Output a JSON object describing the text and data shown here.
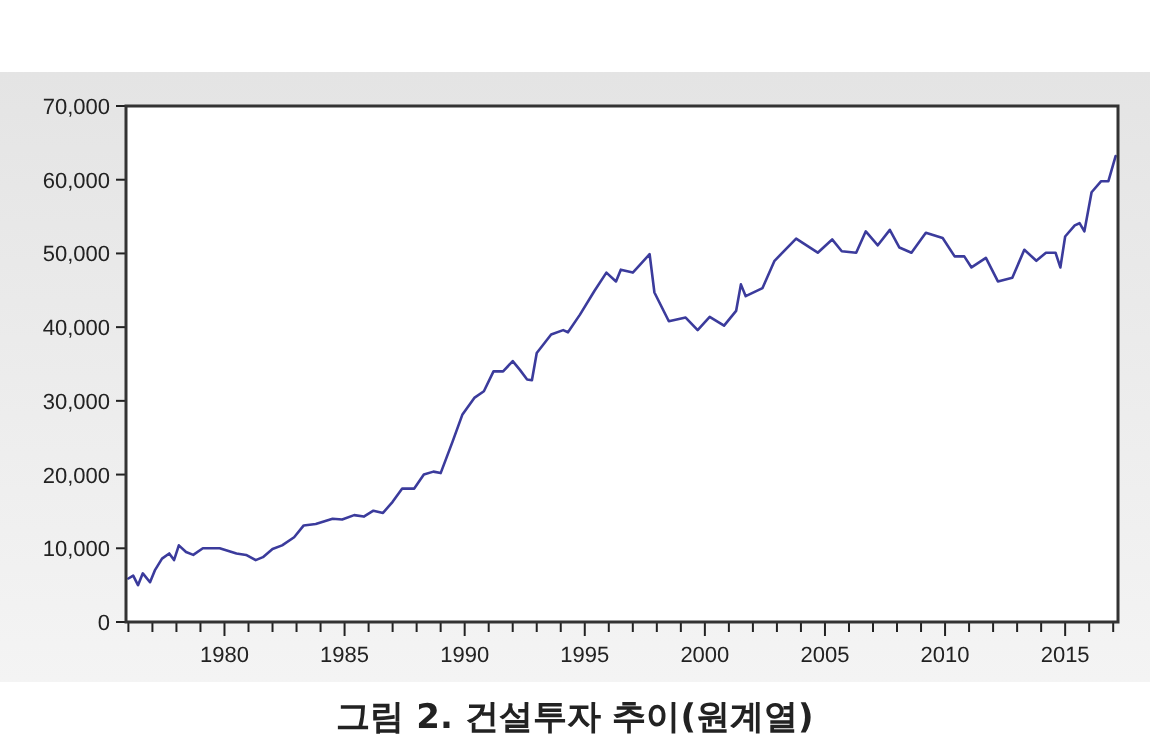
{
  "chart_data": {
    "type": "line",
    "title": "그림 2. 건설투자 추이(원계열)",
    "xlim": [
      1975.9,
      2017.2
    ],
    "ylim": [
      0,
      70000
    ],
    "xticks": [
      {
        "value": 1976,
        "label": null
      },
      {
        "value": 1977,
        "label": null
      },
      {
        "value": 1978,
        "label": null
      },
      {
        "value": 1979,
        "label": null
      },
      1980,
      {
        "value": 1981,
        "label": null
      },
      {
        "value": 1982,
        "label": null
      },
      {
        "value": 1983,
        "label": null
      },
      {
        "value": 1984,
        "label": null
      },
      1985,
      {
        "value": 1986,
        "label": null
      },
      {
        "value": 1987,
        "label": null
      },
      {
        "value": 1988,
        "label": null
      },
      {
        "value": 1989,
        "label": null
      },
      1990,
      {
        "value": 1991,
        "label": null
      },
      {
        "value": 1992,
        "label": null
      },
      {
        "value": 1993,
        "label": null
      },
      {
        "value": 1994,
        "label": null
      },
      1995,
      {
        "value": 1996,
        "label": null
      },
      {
        "value": 1997,
        "label": null
      },
      {
        "value": 1998,
        "label": null
      },
      {
        "value": 1999,
        "label": null
      },
      2000,
      {
        "value": 2001,
        "label": null
      },
      {
        "value": 2002,
        "label": null
      },
      {
        "value": 2003,
        "label": null
      },
      {
        "value": 2004,
        "label": null
      },
      2005,
      {
        "value": 2006,
        "label": null
      },
      {
        "value": 2007,
        "label": null
      },
      {
        "value": 2008,
        "label": null
      },
      {
        "value": 2009,
        "label": null
      },
      2010,
      {
        "value": 2011,
        "label": null
      },
      {
        "value": 2012,
        "label": null
      },
      {
        "value": 2013,
        "label": null
      },
      {
        "value": 2014,
        "label": null
      },
      2015,
      {
        "value": 2016,
        "label": null
      },
      {
        "value": 2017,
        "label": null
      }
    ],
    "yticks": [
      0,
      {
        "value": 10000,
        "label": "10,000"
      },
      {
        "value": 20000,
        "label": "20,000"
      },
      {
        "value": 30000,
        "label": "30,000"
      },
      {
        "value": 40000,
        "label": "40,000"
      },
      {
        "value": 50000,
        "label": "50,000"
      },
      {
        "value": 60000,
        "label": "60,000"
      },
      {
        "value": 70000,
        "label": "70,000"
      }
    ],
    "grid": false,
    "line_style": "solid",
    "series": [
      {
        "color": "#3b3b9c",
        "x": [
          1976.0,
          1976.2,
          1976.4,
          1976.6,
          1976.9,
          1977.1,
          1977.4,
          1977.7,
          1977.9,
          1978.1,
          1978.4,
          1978.7,
          1979.1,
          1979.8,
          1980.5,
          1980.9,
          1981.3,
          1981.6,
          1982.0,
          1982.4,
          1982.9,
          1983.3,
          1983.8,
          1984.5,
          1984.9,
          1985.4,
          1985.8,
          1986.2,
          1986.6,
          1987.0,
          1987.4,
          1987.9,
          1988.3,
          1988.7,
          1989.0,
          1989.5,
          1989.9,
          1990.4,
          1990.8,
          1991.2,
          1991.6,
          1992.0,
          1992.3,
          1992.6,
          1992.8,
          1993.0,
          1993.6,
          1994.1,
          1994.3,
          1994.8,
          1995.4,
          1995.9,
          1996.3,
          1996.5,
          1997.0,
          1997.2,
          1997.7,
          1997.9,
          1998.5,
          1999.2,
          1999.7,
          2000.2,
          2000.8,
          2001.3,
          2001.5,
          2001.7,
          2002.4,
          2002.9,
          2003.8,
          2004.7,
          2005.3,
          2005.7,
          2006.3,
          2006.7,
          2007.2,
          2007.7,
          2008.1,
          2008.6,
          2009.2,
          2009.9,
          2010.4,
          2010.8,
          2011.1,
          2011.7,
          2012.2,
          2012.8,
          2013.3,
          2013.8,
          2014.2,
          2014.6,
          2014.8,
          2015.0,
          2015.4,
          2015.6,
          2015.8,
          2016.1,
          2016.5,
          2016.8,
          2017.1
        ],
        "values": [
          5900,
          6300,
          5000,
          6600,
          5400,
          7000,
          8600,
          9300,
          8400,
          10400,
          9500,
          9100,
          10000,
          10000,
          9300,
          9100,
          8400,
          8800,
          9900,
          10400,
          11500,
          13100,
          13300,
          14000,
          13900,
          14500,
          14300,
          15100,
          14800,
          16300,
          18100,
          18100,
          20000,
          20400,
          20200,
          24500,
          28100,
          30400,
          31300,
          34000,
          34000,
          35400,
          34200,
          32900,
          32800,
          36500,
          39000,
          39600,
          39300,
          41700,
          44900,
          47400,
          46200,
          47800,
          47400,
          48100,
          49900,
          44700,
          40800,
          41300,
          39600,
          41400,
          40200,
          42200,
          45800,
          44200,
          45300,
          49000,
          52000,
          50100,
          51900,
          50300,
          50100,
          53000,
          51100,
          53200,
          50800,
          50100,
          52800,
          52100,
          49600,
          49600,
          48100,
          49400,
          46200,
          46700,
          50500,
          49000,
          50100,
          50100,
          48100,
          52300,
          53800,
          54100,
          53000,
          58300,
          59800,
          59800,
          63200
        ]
      }
    ]
  }
}
